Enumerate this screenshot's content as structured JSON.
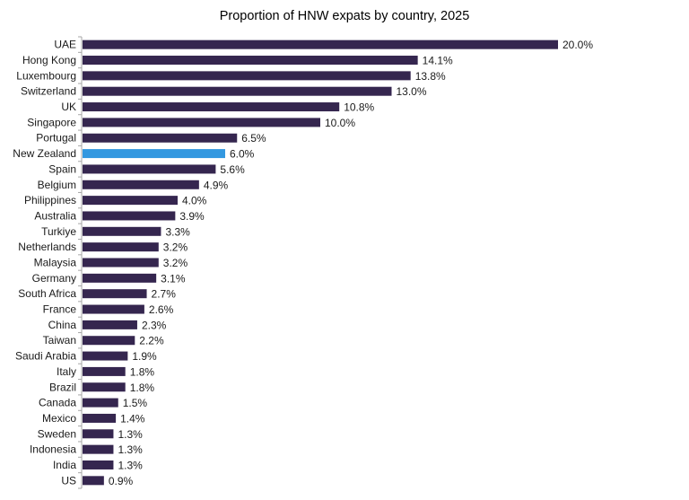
{
  "chart_data": {
    "type": "bar",
    "orientation": "horizontal",
    "title": "Proportion of HNW expats by country, 2025",
    "categories": [
      "UAE",
      "Hong Kong",
      "Luxembourg",
      "Switzerland",
      "UK",
      "Singapore",
      "Portugal",
      "New Zealand",
      "Spain",
      "Belgium",
      "Philippines",
      "Australia",
      "Turkiye",
      "Netherlands",
      "Malaysia",
      "Germany",
      "South Africa",
      "France",
      "China",
      "Taiwan",
      "Saudi Arabia",
      "Italy",
      "Brazil",
      "Canada",
      "Mexico",
      "Sweden",
      "Indonesia",
      "India",
      "US"
    ],
    "values": [
      20.0,
      14.1,
      13.8,
      13.0,
      10.8,
      10.0,
      6.5,
      6.0,
      5.6,
      4.9,
      4.0,
      3.9,
      3.3,
      3.2,
      3.2,
      3.1,
      2.7,
      2.6,
      2.3,
      2.2,
      1.9,
      1.8,
      1.8,
      1.5,
      1.4,
      1.3,
      1.3,
      1.3,
      0.9
    ],
    "data_labels": [
      "20.0%",
      "14.1%",
      "13.8%",
      "13.0%",
      "10.8%",
      "10.0%",
      "6.5%",
      "6.0%",
      "5.6%",
      "4.9%",
      "4.0%",
      "3.9%",
      "3.3%",
      "3.2%",
      "3.2%",
      "3.1%",
      "2.7%",
      "2.6%",
      "2.3%",
      "2.2%",
      "1.9%",
      "1.8%",
      "1.8%",
      "1.5%",
      "1.4%",
      "1.3%",
      "1.3%",
      "1.3%",
      "0.9%"
    ],
    "unit": "%",
    "highlight": "New Zealand",
    "colors": {
      "bar": "#35264f",
      "highlight": "#3398e0",
      "axis": "#a6a6a6"
    },
    "xlabel": "",
    "ylabel": "",
    "grid": false,
    "legend": "none"
  }
}
